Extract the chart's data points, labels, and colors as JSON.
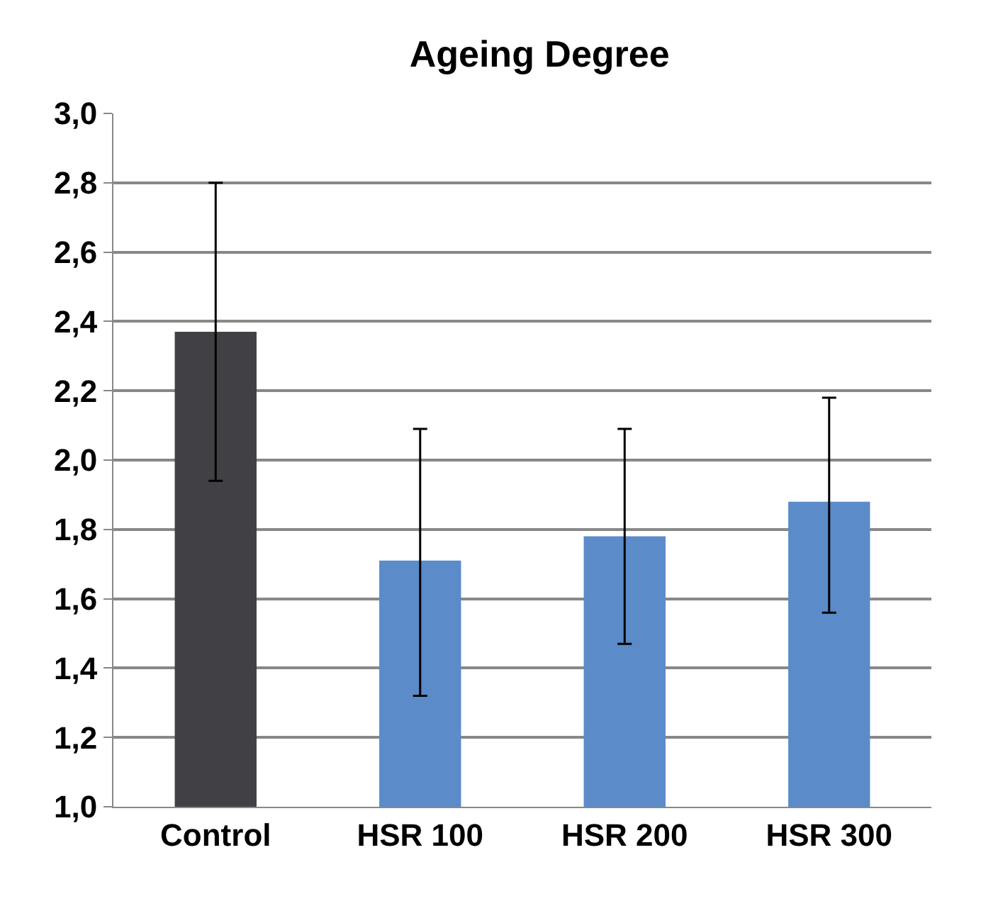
{
  "chart_data": {
    "type": "bar",
    "title": "Ageing Degree",
    "categories": [
      "Control",
      "HSR 100",
      "HSR 200",
      "HSR 300"
    ],
    "values": [
      2.37,
      1.71,
      1.78,
      1.88
    ],
    "colors": [
      "#404045",
      "#5b8bc8",
      "#5b8bc8",
      "#5b8bc8"
    ],
    "errors": [
      [
        1.94,
        2.8
      ],
      [
        1.32,
        2.09
      ],
      [
        1.47,
        2.09
      ],
      [
        1.56,
        2.18
      ]
    ],
    "ylim": [
      1.0,
      3.0
    ],
    "yticks": [
      {
        "value": 1.0,
        "label": "1,0"
      },
      {
        "value": 1.2,
        "label": "1,2"
      },
      {
        "value": 1.4,
        "label": "1,4"
      },
      {
        "value": 1.6,
        "label": "1,6"
      },
      {
        "value": 1.8,
        "label": "1,8"
      },
      {
        "value": 2.0,
        "label": "2,0"
      },
      {
        "value": 2.2,
        "label": "2,2"
      },
      {
        "value": 2.4,
        "label": "2,4"
      },
      {
        "value": 2.6,
        "label": "2,6"
      },
      {
        "value": 2.8,
        "label": "2,8"
      },
      {
        "value": 3.0,
        "label": "3,0"
      }
    ],
    "grid": "y"
  }
}
